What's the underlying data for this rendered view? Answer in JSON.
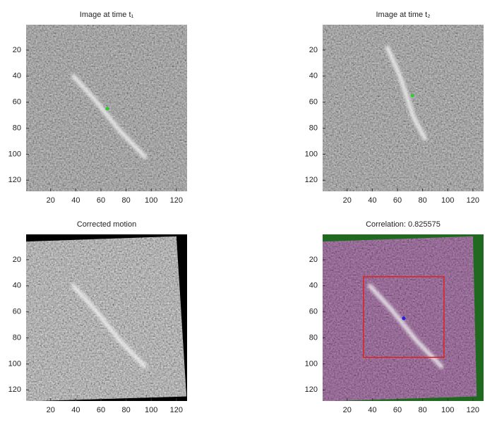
{
  "chart_data": [
    {
      "type": "image",
      "title": "Image at time t₁",
      "xlim": [
        0.5,
        128.5
      ],
      "ylim": [
        0.5,
        128.5
      ],
      "xticks": [
        20,
        40,
        60,
        80,
        100,
        120
      ],
      "yticks": [
        20,
        40,
        60,
        80,
        100,
        120
      ],
      "markers": [
        {
          "x": 65,
          "y": 65,
          "color": "#2ecc2e"
        }
      ]
    },
    {
      "type": "image",
      "title": "Image at time t₂",
      "xlim": [
        0.5,
        128.5
      ],
      "ylim": [
        0.5,
        128.5
      ],
      "xticks": [
        20,
        40,
        60,
        80,
        100,
        120
      ],
      "yticks": [
        20,
        40,
        60,
        80,
        100,
        120
      ],
      "markers": [
        {
          "x": 72,
          "y": 55,
          "color": "#2ecc2e"
        }
      ]
    },
    {
      "type": "image",
      "title": "Corrected motion",
      "xlim": [
        0.5,
        128.5
      ],
      "ylim": [
        0.5,
        128.5
      ],
      "xticks": [
        20,
        40,
        60,
        80,
        100,
        120
      ],
      "yticks": [
        20,
        40,
        60,
        80,
        100,
        120
      ]
    },
    {
      "type": "image",
      "title": "Correlation: 0.825575",
      "xlim": [
        0.5,
        128.5
      ],
      "ylim": [
        0.5,
        128.5
      ],
      "xticks": [
        20,
        40,
        60,
        80,
        100,
        120
      ],
      "yticks": [
        20,
        40,
        60,
        80,
        100,
        120
      ],
      "markers": [
        {
          "x": 65,
          "y": 65,
          "color": "#2020e0"
        }
      ],
      "rectangle": {
        "x": [
          33,
          97
        ],
        "y": [
          33,
          95
        ],
        "color": "#e02020"
      }
    }
  ]
}
